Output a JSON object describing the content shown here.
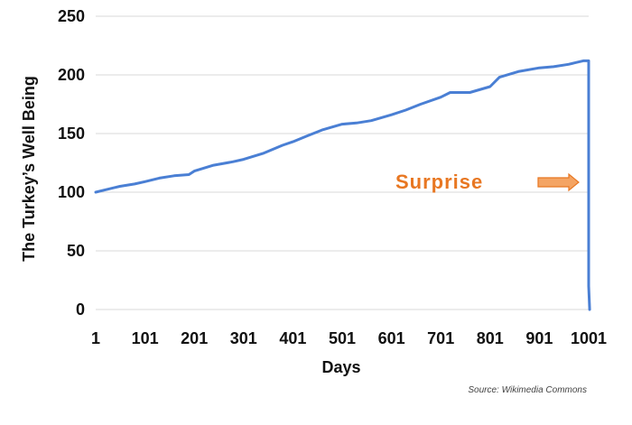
{
  "chart_data": {
    "type": "line",
    "title": "",
    "xlabel": "Days",
    "ylabel": "The Turkey’s Well Being",
    "xlim": [
      1,
      1001
    ],
    "ylim": [
      0,
      250
    ],
    "x_ticks": [
      "1",
      "101",
      "201",
      "301",
      "401",
      "501",
      "601",
      "701",
      "801",
      "901",
      "1001"
    ],
    "y_ticks": [
      "0",
      "50",
      "100",
      "150",
      "200",
      "250"
    ],
    "grid": "horizontal",
    "legend": "none",
    "series": [
      {
        "color": "#4a7fd4",
        "x": [
          1,
          20,
          50,
          80,
          101,
          130,
          160,
          190,
          201,
          240,
          280,
          301,
          340,
          380,
          401,
          430,
          460,
          501,
          530,
          560,
          601,
          630,
          660,
          701,
          720,
          760,
          801,
          820,
          860,
          901,
          930,
          960,
          990,
          1001,
          1001,
          1003
        ],
        "y": [
          100,
          102,
          105,
          107,
          109,
          112,
          114,
          115,
          118,
          123,
          126,
          128,
          133,
          140,
          143,
          148,
          153,
          158,
          159,
          161,
          166,
          170,
          175,
          181,
          185,
          185,
          190,
          198,
          203,
          206,
          207,
          209,
          212,
          212,
          20,
          0
        ]
      }
    ],
    "annotations": [
      {
        "text": "Surprise",
        "x": 795,
        "y": 108,
        "color": "#e87722",
        "arrow": "right"
      }
    ],
    "source": "Source: Wikimedia Commons"
  }
}
